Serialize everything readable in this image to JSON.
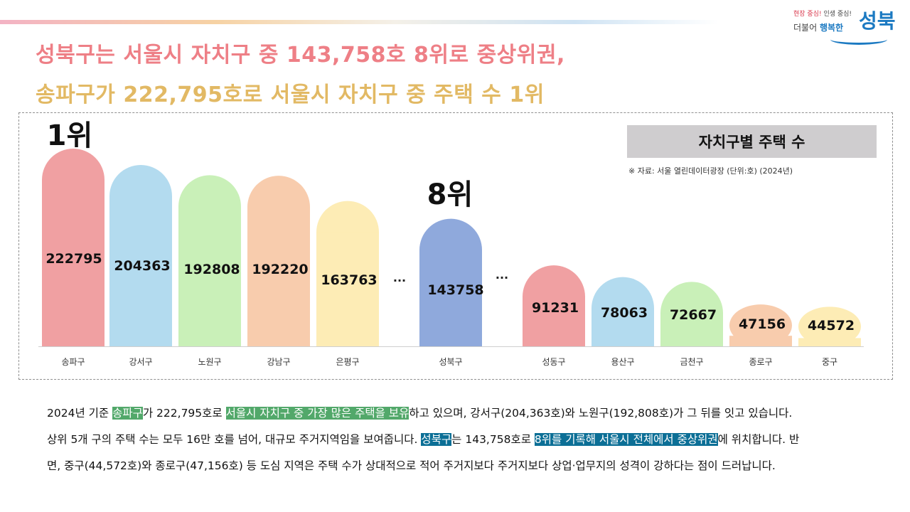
{
  "logo": {
    "slogan_part1": "현장 중심!",
    "slogan_part2": " 인생 중심!",
    "sub_part1": "더불어 ",
    "sub_part2": "행복한",
    "main": "성북"
  },
  "headline": {
    "line1": "성북구는 서울시 자치구 중 143,758호 8위로 중상위권,",
    "line2": "송파구가 222,795호로 서울시 자치구 중 주택 수 1위"
  },
  "chart_data": {
    "type": "bar",
    "title": "자치구별 주택 수",
    "source": "※ 자료: 서울 열린데이터광장   (단위:호) (2024년)",
    "categories": [
      "송파구",
      "강서구",
      "노원구",
      "강남구",
      "은평구",
      "성북구",
      "성동구",
      "용산구",
      "금천구",
      "종로구",
      "중구"
    ],
    "values": [
      222795,
      204363,
      192808,
      192220,
      163763,
      143758,
      91231,
      78063,
      72667,
      47156,
      44572
    ],
    "gap_marker": "...",
    "annotations": [
      {
        "category": "송파구",
        "text": "1위"
      },
      {
        "category": "성북구",
        "text": "8위"
      }
    ],
    "colors": [
      "#f0a0a2",
      "#b3dbef",
      "#c9f0b8",
      "#f8ccad",
      "#fdecb5",
      "#8fa9dc",
      "#f0a0a2",
      "#b3dbef",
      "#c9f0b8",
      "#f8ccad",
      "#fdecb5"
    ],
    "grid": false,
    "legend": "top-right"
  },
  "summary": {
    "p1": [
      {
        "t": "2024년 기준 ",
        "s": ""
      },
      {
        "t": "송파구",
        "s": "g"
      },
      {
        "t": "가 222,795호로 ",
        "s": ""
      },
      {
        "t": "서울시 자치구 중 가장 많은 주택을 보유",
        "s": "g"
      },
      {
        "t": "하고 있으며, 강서구(204,363호)와 노원구(192,808호)가 그 뒤를 잇고 있습니다.",
        "s": ""
      }
    ],
    "p2": [
      {
        "t": "상위 5개 구의 주택 수는 모두 16만 호를 넘어, 대규모 주거지역임을 보여줍니다. ",
        "s": ""
      },
      {
        "t": "성북구",
        "s": "b"
      },
      {
        "t": "는 143,758호로 ",
        "s": ""
      },
      {
        "t": "8위를 기록해 서울시 전체에서 중상위권",
        "s": "b"
      },
      {
        "t": "에 위치합니다. 반",
        "s": ""
      }
    ],
    "p3": [
      {
        "t": "면, 중구(44,572호)와 종로구(47,156호) 등 도심 지역은 주택 수가 상대적으로 적어 주거지보다 주거지보다 상업·업무지의 성격이 강하다는 점이 드러납니다.",
        "s": ""
      }
    ]
  }
}
